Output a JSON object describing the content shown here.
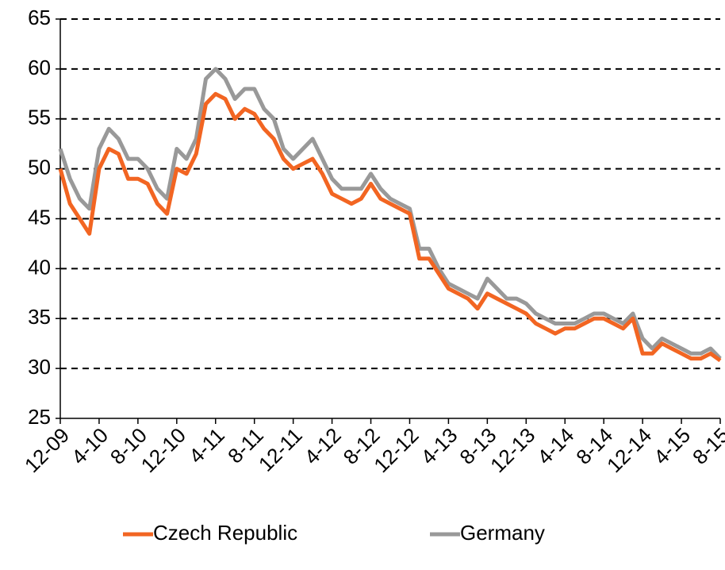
{
  "chart_data": {
    "type": "line",
    "x": [
      "12-09",
      "1-10",
      "2-10",
      "3-10",
      "4-10",
      "5-10",
      "6-10",
      "7-10",
      "8-10",
      "9-10",
      "10-10",
      "11-10",
      "12-10",
      "1-11",
      "2-11",
      "3-11",
      "4-11",
      "5-11",
      "6-11",
      "7-11",
      "8-11",
      "9-11",
      "10-11",
      "11-11",
      "12-11",
      "1-12",
      "2-12",
      "3-12",
      "4-12",
      "5-12",
      "6-12",
      "7-12",
      "8-12",
      "9-12",
      "10-12",
      "11-12",
      "12-12",
      "1-13",
      "2-13",
      "3-13",
      "4-13",
      "5-13",
      "6-13",
      "7-13",
      "8-13",
      "9-13",
      "10-13",
      "11-13",
      "12-13",
      "1-14",
      "2-14",
      "3-14",
      "4-14",
      "5-14",
      "6-14",
      "7-14",
      "8-14",
      "9-14",
      "10-14",
      "11-14",
      "12-14",
      "1-15",
      "2-15",
      "3-15",
      "4-15",
      "5-15",
      "6-15",
      "7-15",
      "8-15"
    ],
    "series": [
      {
        "name": "Czech Republic",
        "color": "#f26522",
        "values": [
          50,
          46.5,
          45,
          43.5,
          50,
          52,
          51.5,
          49,
          49,
          48.5,
          46.5,
          45.5,
          50,
          49.5,
          51.5,
          56.5,
          57.5,
          57,
          55,
          56,
          55.5,
          54,
          53,
          51,
          50,
          50.5,
          51,
          49.5,
          47.5,
          47,
          46.5,
          47,
          48.5,
          47,
          46.5,
          46,
          45.5,
          41,
          41,
          39.5,
          38,
          37.5,
          37,
          36,
          37.5,
          37,
          36.5,
          36,
          35.5,
          34.5,
          34,
          33.5,
          34,
          34,
          34.5,
          35,
          35,
          34.5,
          34,
          35,
          31.5,
          31.5,
          32.5,
          32,
          31.5,
          31,
          31,
          31.5,
          30.8
        ]
      },
      {
        "name": "Germany",
        "color": "#999999",
        "values": [
          52,
          49,
          47,
          46,
          52,
          54,
          53,
          51,
          51,
          50,
          48,
          47,
          52,
          51,
          53,
          59,
          60,
          59,
          57,
          58,
          58,
          56,
          55,
          52,
          51,
          52,
          53,
          51,
          49,
          48,
          48,
          48,
          49.5,
          48,
          47,
          46.5,
          46,
          42,
          42,
          40,
          38.5,
          38,
          37.5,
          37,
          39,
          38,
          37,
          37,
          36.5,
          35.5,
          35,
          34.5,
          34.5,
          34.5,
          35,
          35.5,
          35.5,
          35,
          34.5,
          35.5,
          33,
          32,
          33,
          32.5,
          32,
          31.5,
          31.5,
          32,
          31
        ]
      }
    ],
    "xticks": [
      "12-09",
      "4-10",
      "8-10",
      "12-10",
      "4-11",
      "8-11",
      "12-11",
      "4-12",
      "8-12",
      "12-12",
      "4-13",
      "8-13",
      "12-13",
      "4-14",
      "8-14",
      "12-14",
      "4-15",
      "8-15"
    ],
    "ylim": [
      25,
      65
    ],
    "yticks": [
      25,
      30,
      35,
      40,
      45,
      50,
      55,
      60,
      65
    ],
    "grid": true,
    "legend": "bottom"
  }
}
